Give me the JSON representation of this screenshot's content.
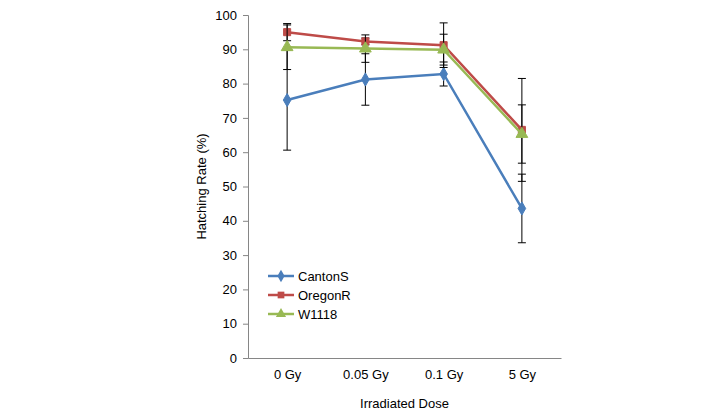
{
  "chart_data": {
    "type": "line",
    "x_label": "Irradiated Dose",
    "y_label": "Hatching Rate (%)",
    "categories": [
      "0 Gy",
      "0.05 Gy",
      "0.1 Gy",
      "5 Gy"
    ],
    "series": [
      {
        "name": "CantonS",
        "color": "#4a7ebb",
        "marker": "diamond",
        "line_style": "solid",
        "values": [
          75.2,
          81.2,
          82.8,
          43.6
        ],
        "errors": [
          14.6,
          7.5,
          3.5,
          10
        ]
      },
      {
        "name": "OregonR",
        "color": "#be4b48",
        "marker": "square",
        "line_style": "solid",
        "values": [
          95,
          92.3,
          91.2,
          66.5
        ],
        "errors": [
          2.5,
          1,
          6.5,
          15
        ]
      },
      {
        "name": "W1118",
        "color": "#98b954",
        "marker": "triangle",
        "line_style": "solid",
        "values": [
          90.6,
          90.2,
          89.9,
          65.3
        ],
        "errors": [
          6.5,
          4,
          4.5,
          8.5
        ]
      }
    ],
    "ylim": [
      0,
      100
    ],
    "yticks": [
      0,
      10,
      20,
      30,
      40,
      50,
      60,
      70,
      80,
      90,
      100
    ],
    "legend": "lower left",
    "grid": false
  }
}
